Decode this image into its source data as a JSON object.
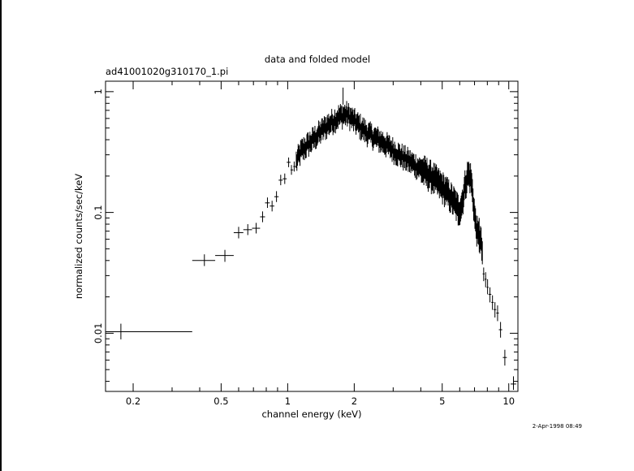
{
  "chart_data": {
    "type": "scatter",
    "title": "data and folded model",
    "subtitle": "ad41001020g310170_1.pi",
    "xlabel": "channel energy (keV)",
    "ylabel": "normalized counts/sec/keV",
    "xscale": "log",
    "yscale": "log",
    "xlim": [
      0.15,
      11.0
    ],
    "ylim": [
      0.0033,
      1.22
    ],
    "xticks": [
      {
        "value": 0.2,
        "label": "0.2"
      },
      {
        "value": 0.5,
        "label": "0.5"
      },
      {
        "value": 1,
        "label": "1"
      },
      {
        "value": 2,
        "label": "2"
      },
      {
        "value": 5,
        "label": "5"
      },
      {
        "value": 10,
        "label": "10"
      }
    ],
    "yticks": [
      {
        "value": 0.01,
        "label": "0.01"
      },
      {
        "value": 0.1,
        "label": "0.1"
      },
      {
        "value": 1,
        "label": "1"
      }
    ],
    "timestamp": "2-Apr-1998 08:49",
    "grid": false,
    "marker": "cross-with-errorbars",
    "color": "#000000",
    "points": [
      {
        "x": 0.176,
        "xlo": 0.15,
        "xhi": 0.37,
        "y": 0.0103,
        "ylo": 0.0089,
        "yhi": 0.012
      },
      {
        "x": 0.42,
        "xlo": 0.37,
        "xhi": 0.47,
        "y": 0.04,
        "ylo": 0.036,
        "yhi": 0.045
      },
      {
        "x": 0.52,
        "xlo": 0.47,
        "xhi": 0.57,
        "y": 0.044,
        "ylo": 0.039,
        "yhi": 0.049
      },
      {
        "x": 0.6,
        "xlo": 0.57,
        "xhi": 0.63,
        "y": 0.068,
        "ylo": 0.061,
        "yhi": 0.076
      },
      {
        "x": 0.66,
        "xlo": 0.63,
        "xhi": 0.69,
        "y": 0.072,
        "ylo": 0.065,
        "yhi": 0.08
      },
      {
        "x": 0.72,
        "xlo": 0.69,
        "xhi": 0.75,
        "y": 0.074,
        "ylo": 0.067,
        "yhi": 0.082
      },
      {
        "x": 0.77,
        "xlo": 0.75,
        "xhi": 0.79,
        "y": 0.092,
        "ylo": 0.083,
        "yhi": 0.102
      },
      {
        "x": 0.81,
        "xlo": 0.79,
        "xhi": 0.83,
        "y": 0.12,
        "ylo": 0.109,
        "yhi": 0.133
      },
      {
        "x": 0.85,
        "xlo": 0.83,
        "xhi": 0.87,
        "y": 0.113,
        "ylo": 0.102,
        "yhi": 0.125
      },
      {
        "x": 0.89,
        "xlo": 0.87,
        "xhi": 0.91,
        "y": 0.135,
        "ylo": 0.122,
        "yhi": 0.15
      },
      {
        "x": 0.93,
        "xlo": 0.91,
        "xhi": 0.95,
        "y": 0.185,
        "ylo": 0.168,
        "yhi": 0.205
      },
      {
        "x": 0.97,
        "xlo": 0.95,
        "xhi": 0.99,
        "y": 0.19,
        "ylo": 0.172,
        "yhi": 0.21
      },
      {
        "x": 1.01,
        "xlo": 0.99,
        "xhi": 1.03,
        "y": 0.26,
        "ylo": 0.237,
        "yhi": 0.285
      },
      {
        "x": 1.04,
        "xlo": 1.03,
        "xhi": 1.06,
        "y": 0.225,
        "ylo": 0.205,
        "yhi": 0.247
      },
      {
        "x": 1.07,
        "xlo": 1.06,
        "xhi": 1.09,
        "y": 0.24,
        "ylo": 0.218,
        "yhi": 0.264
      },
      {
        "x": 7.7,
        "xlo": 7.62,
        "xhi": 7.78,
        "y": 0.031,
        "ylo": 0.027,
        "yhi": 0.035
      },
      {
        "x": 7.86,
        "xlo": 7.78,
        "xhi": 7.94,
        "y": 0.028,
        "ylo": 0.024,
        "yhi": 0.032
      },
      {
        "x": 8.02,
        "xlo": 7.94,
        "xhi": 8.1,
        "y": 0.024,
        "ylo": 0.021,
        "yhi": 0.028
      },
      {
        "x": 8.22,
        "xlo": 8.1,
        "xhi": 8.34,
        "y": 0.021,
        "ylo": 0.018,
        "yhi": 0.024
      },
      {
        "x": 8.44,
        "xlo": 8.34,
        "xhi": 8.54,
        "y": 0.018,
        "ylo": 0.0156,
        "yhi": 0.0206
      },
      {
        "x": 8.66,
        "xlo": 8.54,
        "xhi": 8.78,
        "y": 0.0157,
        "ylo": 0.0135,
        "yhi": 0.0181
      },
      {
        "x": 8.9,
        "xlo": 8.78,
        "xhi": 9.02,
        "y": 0.0147,
        "ylo": 0.0126,
        "yhi": 0.017
      },
      {
        "x": 9.18,
        "xlo": 9.02,
        "xhi": 9.34,
        "y": 0.0107,
        "ylo": 0.0092,
        "yhi": 0.0124
      },
      {
        "x": 9.6,
        "xlo": 9.4,
        "xhi": 9.8,
        "y": 0.0063,
        "ylo": 0.0054,
        "yhi": 0.0073
      },
      {
        "x": 10.5,
        "xlo": 10.2,
        "xhi": 10.8,
        "y": 0.0038,
        "ylo": 0.0034,
        "yhi": 0.0044
      }
    ],
    "dense_band": {
      "x_start": 1.09,
      "x_end": 7.62,
      "bins": 300,
      "profile": [
        {
          "x": 1.09,
          "y": 0.26
        },
        {
          "x": 1.15,
          "y": 0.32
        },
        {
          "x": 1.3,
          "y": 0.4
        },
        {
          "x": 1.5,
          "y": 0.52
        },
        {
          "x": 1.7,
          "y": 0.62
        },
        {
          "x": 1.85,
          "y": 0.65
        },
        {
          "x": 2.0,
          "y": 0.57
        },
        {
          "x": 2.3,
          "y": 0.45
        },
        {
          "x": 2.7,
          "y": 0.38
        },
        {
          "x": 3.2,
          "y": 0.3
        },
        {
          "x": 3.6,
          "y": 0.26
        },
        {
          "x": 4.0,
          "y": 0.23
        },
        {
          "x": 4.6,
          "y": 0.19
        },
        {
          "x": 5.2,
          "y": 0.15
        },
        {
          "x": 5.7,
          "y": 0.12
        },
        {
          "x": 5.95,
          "y": 0.104
        },
        {
          "x": 6.15,
          "y": 0.12
        },
        {
          "x": 6.35,
          "y": 0.17
        },
        {
          "x": 6.55,
          "y": 0.21
        },
        {
          "x": 6.75,
          "y": 0.19
        },
        {
          "x": 6.9,
          "y": 0.13
        },
        {
          "x": 7.05,
          "y": 0.085
        },
        {
          "x": 7.25,
          "y": 0.065
        },
        {
          "x": 7.45,
          "y": 0.06
        },
        {
          "x": 7.62,
          "y": 0.045
        }
      ],
      "relative_error": 0.17
    }
  }
}
